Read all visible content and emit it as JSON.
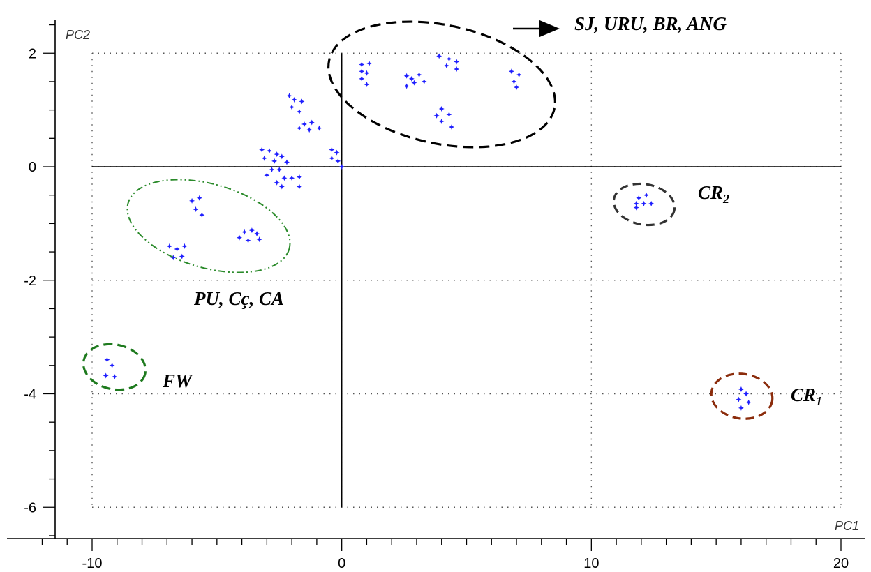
{
  "chart_data": {
    "type": "scatter",
    "title": "",
    "xlabel": "PC1",
    "ylabel": "PC2",
    "xlim": [
      -12,
      20
    ],
    "ylim": [
      -7,
      2.6
    ],
    "x_ticks": [
      -10,
      0,
      10,
      20
    ],
    "y_ticks": [
      2,
      0,
      -2,
      -4,
      -6
    ],
    "grid": true,
    "point_color": "#1f1fff",
    "series": [
      {
        "values": [
          [
            -9.4,
            -3.4
          ],
          [
            -9.2,
            -3.5
          ],
          [
            -9.45,
            -3.68
          ],
          [
            -9.1,
            -3.7
          ],
          [
            -6.0,
            -0.6
          ],
          [
            -5.7,
            -0.55
          ],
          [
            -5.85,
            -0.75
          ],
          [
            -5.6,
            -0.85
          ],
          [
            -6.9,
            -1.4
          ],
          [
            -6.6,
            -1.45
          ],
          [
            -6.3,
            -1.4
          ],
          [
            -6.75,
            -1.6
          ],
          [
            -6.4,
            -1.58
          ],
          [
            -3.9,
            -1.15
          ],
          [
            -3.6,
            -1.12
          ],
          [
            -3.4,
            -1.18
          ],
          [
            -4.1,
            -1.25
          ],
          [
            -3.75,
            -1.3
          ],
          [
            -3.3,
            -1.28
          ],
          [
            -3.2,
            0.3
          ],
          [
            -2.9,
            0.28
          ],
          [
            -2.6,
            0.22
          ],
          [
            -3.1,
            0.15
          ],
          [
            -2.7,
            0.1
          ],
          [
            -2.4,
            0.18
          ],
          [
            -2.2,
            0.08
          ],
          [
            -2.5,
            -0.05
          ],
          [
            -2.8,
            -0.05
          ],
          [
            -2.3,
            -0.2
          ],
          [
            -3.0,
            -0.15
          ],
          [
            -2.6,
            -0.28
          ],
          [
            -2.0,
            -0.2
          ],
          [
            -1.7,
            -0.18
          ],
          [
            -2.4,
            -0.35
          ],
          [
            -1.7,
            -0.35
          ],
          [
            -2.1,
            1.25
          ],
          [
            -1.9,
            1.18
          ],
          [
            -1.6,
            1.15
          ],
          [
            -2.0,
            1.05
          ],
          [
            -1.7,
            0.97
          ],
          [
            -1.5,
            0.75
          ],
          [
            -1.2,
            0.78
          ],
          [
            -1.7,
            0.68
          ],
          [
            -1.3,
            0.65
          ],
          [
            -0.9,
            0.68
          ],
          [
            -0.4,
            0.3
          ],
          [
            -0.2,
            0.25
          ],
          [
            -0.4,
            0.15
          ],
          [
            -0.15,
            0.1
          ],
          [
            0.0,
            0.0
          ],
          [
            0.8,
            1.8
          ],
          [
            1.1,
            1.82
          ],
          [
            0.8,
            1.68
          ],
          [
            1.0,
            1.65
          ],
          [
            0.8,
            1.55
          ],
          [
            1.0,
            1.45
          ],
          [
            2.6,
            1.6
          ],
          [
            3.1,
            1.62
          ],
          [
            2.8,
            1.55
          ],
          [
            3.3,
            1.5
          ],
          [
            2.6,
            1.42
          ],
          [
            2.9,
            1.48
          ],
          [
            3.9,
            1.95
          ],
          [
            4.3,
            1.9
          ],
          [
            4.6,
            1.85
          ],
          [
            4.2,
            1.78
          ],
          [
            4.6,
            1.72
          ],
          [
            4.0,
            1.02
          ],
          [
            3.8,
            0.9
          ],
          [
            4.3,
            0.92
          ],
          [
            4.0,
            0.8
          ],
          [
            4.4,
            0.7
          ],
          [
            6.8,
            1.68
          ],
          [
            7.1,
            1.62
          ],
          [
            6.9,
            1.5
          ],
          [
            7.0,
            1.4
          ],
          [
            11.9,
            -0.55
          ],
          [
            12.2,
            -0.5
          ],
          [
            11.8,
            -0.65
          ],
          [
            12.1,
            -0.65
          ],
          [
            12.4,
            -0.65
          ],
          [
            11.8,
            -0.72
          ],
          [
            16.0,
            -3.92
          ],
          [
            16.2,
            -4.0
          ],
          [
            15.9,
            -4.1
          ],
          [
            16.3,
            -4.15
          ],
          [
            16.0,
            -4.25
          ]
        ]
      }
    ],
    "annotations": [
      {
        "text": "SJ, URU, BR, ANG"
      },
      {
        "text": "PU, Cç, CA"
      },
      {
        "text": "FW"
      },
      {
        "text": "CR",
        "subscript": "2"
      },
      {
        "text": "CR",
        "subscript": "1"
      }
    ]
  }
}
